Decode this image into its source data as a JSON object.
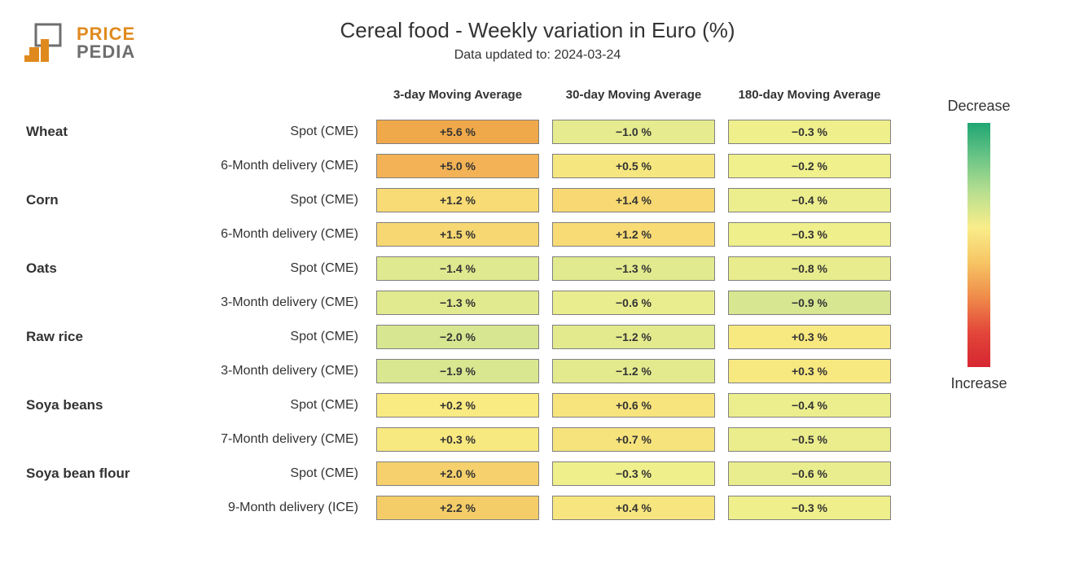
{
  "logo": {
    "word1": "PRICE",
    "word2": "PEDIA",
    "color1": "#e08a1e",
    "color2": "#6e6e6e"
  },
  "title": "Cereal food - Weekly variation in Euro (%)",
  "subtitle": "Data updated to: 2024-03-24",
  "columns": [
    "3-day Moving Average",
    "30-day Moving Average",
    "180-day Moving Average"
  ],
  "categories": [
    {
      "name": "Wheat",
      "rows": [
        {
          "label": "Spot (CME)",
          "values": [
            "+5.6 %",
            "−1.0 %",
            "−0.3 %"
          ],
          "colors": [
            "#f0a94a",
            "#e5eb8e",
            "#efef8c"
          ]
        },
        {
          "label": "6-Month delivery (CME)",
          "values": [
            "+5.0 %",
            "+0.5 %",
            "−0.2 %"
          ],
          "colors": [
            "#f2b255",
            "#f6e67f",
            "#f0f08c"
          ]
        }
      ]
    },
    {
      "name": "Corn",
      "rows": [
        {
          "label": "Spot (CME)",
          "values": [
            "+1.2 %",
            "+1.4 %",
            "−0.4 %"
          ],
          "colors": [
            "#f8db75",
            "#f7d872",
            "#ecee8d"
          ]
        },
        {
          "label": "6-Month delivery (CME)",
          "values": [
            "+1.5 %",
            "+1.2 %",
            "−0.3 %"
          ],
          "colors": [
            "#f7d772",
            "#f8db75",
            "#efef8c"
          ]
        }
      ]
    },
    {
      "name": "Oats",
      "rows": [
        {
          "label": "Spot (CME)",
          "values": [
            "−1.4 %",
            "−1.3 %",
            "−0.8 %"
          ],
          "colors": [
            "#dfe98f",
            "#e1ea8f",
            "#e8ec8d"
          ]
        },
        {
          "label": "3-Month delivery (CME)",
          "values": [
            "−1.3 %",
            "−0.6 %",
            "−0.9 %"
          ],
          "colors": [
            "#e1ea8f",
            "#eaed8d",
            "#d7e691"
          ]
        }
      ]
    },
    {
      "name": "Raw rice",
      "rows": [
        {
          "label": "Spot (CME)",
          "values": [
            "−2.0 %",
            "−1.2 %",
            "+0.3 %"
          ],
          "colors": [
            "#d6e691",
            "#e3ea8e",
            "#f8e880"
          ]
        },
        {
          "label": "3-Month delivery (CME)",
          "values": [
            "−1.9 %",
            "−1.2 %",
            "+0.3 %"
          ],
          "colors": [
            "#d8e790",
            "#e3ea8e",
            "#f8e880"
          ]
        }
      ]
    },
    {
      "name": "Soya beans",
      "rows": [
        {
          "label": "Spot (CME)",
          "values": [
            "+0.2 %",
            "+0.6 %",
            "−0.4 %"
          ],
          "colors": [
            "#f9ea82",
            "#f7e47d",
            "#ecee8d"
          ]
        },
        {
          "label": "7-Month delivery (CME)",
          "values": [
            "+0.3 %",
            "+0.7 %",
            "−0.5 %"
          ],
          "colors": [
            "#f8e880",
            "#f6e37c",
            "#ebed8d"
          ]
        }
      ]
    },
    {
      "name": "Soya bean flour",
      "rows": [
        {
          "label": "Spot (CME)",
          "values": [
            "+2.0 %",
            "−0.3 %",
            "−0.6 %"
          ],
          "colors": [
            "#f5d06c",
            "#efef8c",
            "#eaed8d"
          ]
        },
        {
          "label": "9-Month delivery (ICE)",
          "values": [
            "+2.2 %",
            "+0.4 %",
            "−0.3 %"
          ],
          "colors": [
            "#f4cd69",
            "#f7e67f",
            "#efef8c"
          ]
        }
      ]
    }
  ],
  "legend": {
    "top_label": "Decrease",
    "bottom_label": "Increase",
    "gradient": [
      "#1fa673",
      "#6cc586",
      "#b9df90",
      "#f9ed8a",
      "#f7c564",
      "#ef8b4a",
      "#e3463a",
      "#d62631"
    ]
  },
  "style": {
    "background": "#ffffff",
    "cell_border": "#808080",
    "title_fontsize": 26,
    "subtitle_fontsize": 16,
    "header_fontsize": 15,
    "category_fontsize": 17,
    "sublabel_fontsize": 16,
    "cell_fontsize": 14
  }
}
